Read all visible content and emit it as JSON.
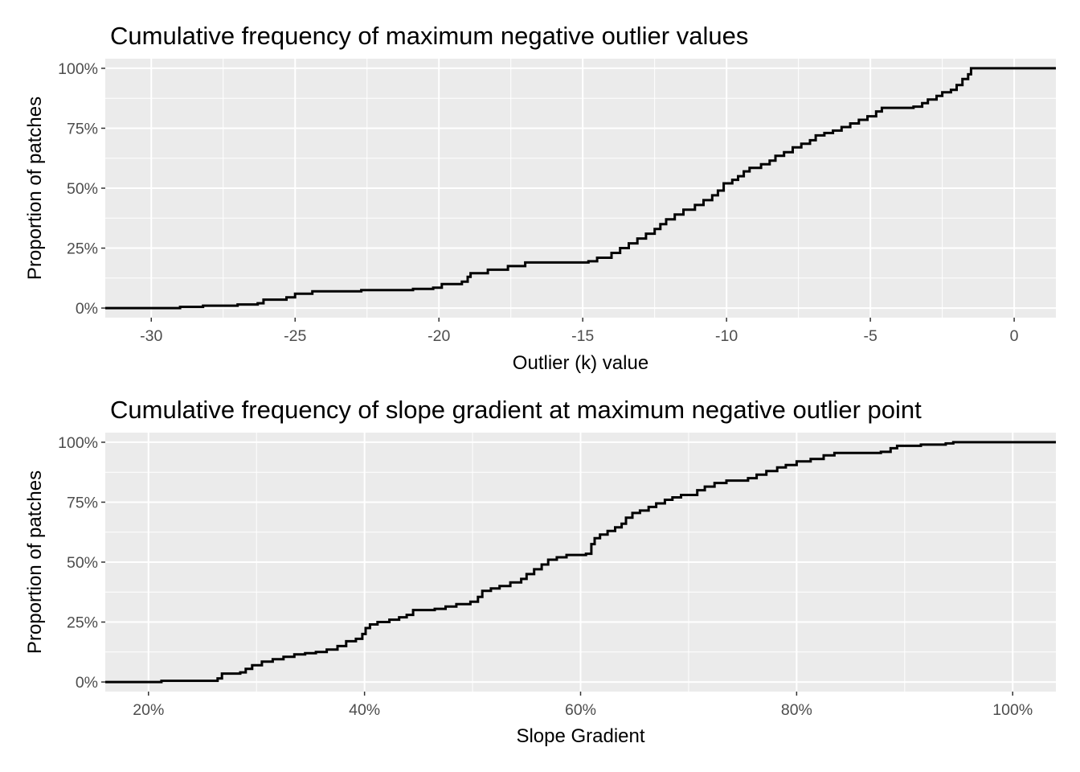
{
  "figure_title": "Cumulative frequency plots",
  "colors": {
    "panel_background": "#EBEBEB",
    "grid_line": "#FFFFFF",
    "line": "#000000",
    "tick_text": "#4D4D4D"
  },
  "chart_data": [
    {
      "type": "line",
      "step": true,
      "title": "Cumulative frequency of maximum negative outlier values",
      "xlabel": "Outlier (k) value",
      "ylabel": "Proportion of patches",
      "xlim": [
        -31.6,
        1.45
      ],
      "ylim": [
        -0.04,
        1.04
      ],
      "x_ticks": [
        -30,
        -25,
        -20,
        -15,
        -10,
        -5,
        0
      ],
      "x_tick_labels": [
        "-30",
        "-25",
        "-20",
        "-15",
        "-10",
        "-5",
        "0"
      ],
      "y_ticks": [
        0,
        0.25,
        0.5,
        0.75,
        1.0
      ],
      "y_tick_labels": [
        "0%",
        "25%",
        "50%",
        "75%",
        "100%"
      ],
      "series": [
        {
          "name": "ecdf",
          "points": [
            [
              -31.6,
              0.0
            ],
            [
              -29.2,
              0.0
            ],
            [
              -29.0,
              0.005
            ],
            [
              -28.2,
              0.01
            ],
            [
              -27.0,
              0.015
            ],
            [
              -26.3,
              0.02
            ],
            [
              -26.1,
              0.035
            ],
            [
              -25.3,
              0.045
            ],
            [
              -25.0,
              0.06
            ],
            [
              -24.4,
              0.07
            ],
            [
              -22.7,
              0.075
            ],
            [
              -20.9,
              0.08
            ],
            [
              -20.2,
              0.085
            ],
            [
              -19.9,
              0.1
            ],
            [
              -19.2,
              0.11
            ],
            [
              -19.0,
              0.13
            ],
            [
              -18.9,
              0.145
            ],
            [
              -18.3,
              0.16
            ],
            [
              -17.6,
              0.175
            ],
            [
              -17.0,
              0.19
            ],
            [
              -14.8,
              0.195
            ],
            [
              -14.5,
              0.21
            ],
            [
              -14.0,
              0.23
            ],
            [
              -13.7,
              0.25
            ],
            [
              -13.4,
              0.27
            ],
            [
              -13.1,
              0.29
            ],
            [
              -12.8,
              0.31
            ],
            [
              -12.5,
              0.33
            ],
            [
              -12.3,
              0.35
            ],
            [
              -12.1,
              0.37
            ],
            [
              -11.8,
              0.39
            ],
            [
              -11.5,
              0.41
            ],
            [
              -11.1,
              0.43
            ],
            [
              -10.8,
              0.45
            ],
            [
              -10.5,
              0.47
            ],
            [
              -10.3,
              0.49
            ],
            [
              -10.1,
              0.52
            ],
            [
              -9.8,
              0.535
            ],
            [
              -9.6,
              0.55
            ],
            [
              -9.4,
              0.57
            ],
            [
              -9.2,
              0.585
            ],
            [
              -8.8,
              0.6
            ],
            [
              -8.5,
              0.615
            ],
            [
              -8.3,
              0.635
            ],
            [
              -8.0,
              0.65
            ],
            [
              -7.7,
              0.67
            ],
            [
              -7.4,
              0.685
            ],
            [
              -7.1,
              0.7
            ],
            [
              -6.9,
              0.72
            ],
            [
              -6.6,
              0.73
            ],
            [
              -6.3,
              0.74
            ],
            [
              -6.0,
              0.755
            ],
            [
              -5.7,
              0.77
            ],
            [
              -5.4,
              0.785
            ],
            [
              -5.1,
              0.8
            ],
            [
              -4.8,
              0.82
            ],
            [
              -4.6,
              0.835
            ],
            [
              -3.5,
              0.84
            ],
            [
              -3.2,
              0.855
            ],
            [
              -3.0,
              0.87
            ],
            [
              -2.7,
              0.885
            ],
            [
              -2.5,
              0.9
            ],
            [
              -2.2,
              0.91
            ],
            [
              -2.0,
              0.93
            ],
            [
              -1.8,
              0.955
            ],
            [
              -1.6,
              0.975
            ],
            [
              -1.5,
              1.0
            ],
            [
              1.45,
              1.0
            ]
          ]
        }
      ]
    },
    {
      "type": "line",
      "step": true,
      "title": "Cumulative frequency of slope gradient at maximum negative outlier point",
      "xlabel": "Slope Gradient",
      "ylabel": "Proportion of patches",
      "xlim": [
        16.0,
        104.0
      ],
      "ylim": [
        -0.04,
        1.04
      ],
      "x_ticks": [
        20,
        40,
        60,
        80,
        100
      ],
      "x_tick_labels": [
        "20%",
        "40%",
        "60%",
        "80%",
        "100%"
      ],
      "y_ticks": [
        0,
        0.25,
        0.5,
        0.75,
        1.0
      ],
      "y_tick_labels": [
        "0%",
        "25%",
        "50%",
        "75%",
        "100%"
      ],
      "series": [
        {
          "name": "ecdf",
          "points": [
            [
              16.0,
              0.0
            ],
            [
              21.0,
              0.0
            ],
            [
              21.2,
              0.005
            ],
            [
              26.0,
              0.005
            ],
            [
              26.4,
              0.015
            ],
            [
              26.8,
              0.035
            ],
            [
              28.5,
              0.04
            ],
            [
              29.0,
              0.055
            ],
            [
              29.6,
              0.07
            ],
            [
              30.5,
              0.085
            ],
            [
              31.5,
              0.095
            ],
            [
              32.5,
              0.105
            ],
            [
              33.5,
              0.115
            ],
            [
              34.5,
              0.12
            ],
            [
              35.5,
              0.125
            ],
            [
              36.5,
              0.135
            ],
            [
              37.5,
              0.15
            ],
            [
              38.3,
              0.17
            ],
            [
              39.2,
              0.18
            ],
            [
              39.8,
              0.2
            ],
            [
              40.1,
              0.225
            ],
            [
              40.5,
              0.24
            ],
            [
              41.2,
              0.25
            ],
            [
              42.3,
              0.26
            ],
            [
              43.2,
              0.27
            ],
            [
              43.9,
              0.28
            ],
            [
              44.5,
              0.3
            ],
            [
              46.5,
              0.305
            ],
            [
              47.5,
              0.315
            ],
            [
              48.5,
              0.325
            ],
            [
              49.8,
              0.335
            ],
            [
              50.5,
              0.355
            ],
            [
              50.9,
              0.38
            ],
            [
              51.7,
              0.39
            ],
            [
              52.5,
              0.4
            ],
            [
              53.5,
              0.415
            ],
            [
              54.5,
              0.43
            ],
            [
              55.0,
              0.45
            ],
            [
              55.7,
              0.47
            ],
            [
              56.4,
              0.49
            ],
            [
              57.0,
              0.51
            ],
            [
              57.8,
              0.52
            ],
            [
              58.7,
              0.53
            ],
            [
              60.5,
              0.535
            ],
            [
              61.0,
              0.575
            ],
            [
              61.3,
              0.6
            ],
            [
              61.8,
              0.615
            ],
            [
              62.5,
              0.63
            ],
            [
              63.2,
              0.645
            ],
            [
              63.8,
              0.66
            ],
            [
              64.2,
              0.685
            ],
            [
              64.8,
              0.705
            ],
            [
              65.5,
              0.715
            ],
            [
              66.3,
              0.73
            ],
            [
              67.0,
              0.745
            ],
            [
              67.8,
              0.76
            ],
            [
              68.5,
              0.77
            ],
            [
              69.3,
              0.78
            ],
            [
              70.8,
              0.8
            ],
            [
              71.5,
              0.815
            ],
            [
              72.4,
              0.83
            ],
            [
              73.5,
              0.84
            ],
            [
              75.5,
              0.85
            ],
            [
              76.3,
              0.865
            ],
            [
              77.2,
              0.88
            ],
            [
              78.2,
              0.895
            ],
            [
              79.0,
              0.905
            ],
            [
              80.0,
              0.92
            ],
            [
              81.3,
              0.93
            ],
            [
              82.5,
              0.945
            ],
            [
              83.5,
              0.955
            ],
            [
              87.8,
              0.96
            ],
            [
              88.7,
              0.975
            ],
            [
              89.3,
              0.985
            ],
            [
              91.5,
              0.99
            ],
            [
              93.8,
              0.995
            ],
            [
              94.5,
              1.0
            ],
            [
              104.0,
              1.0
            ]
          ]
        }
      ]
    }
  ]
}
